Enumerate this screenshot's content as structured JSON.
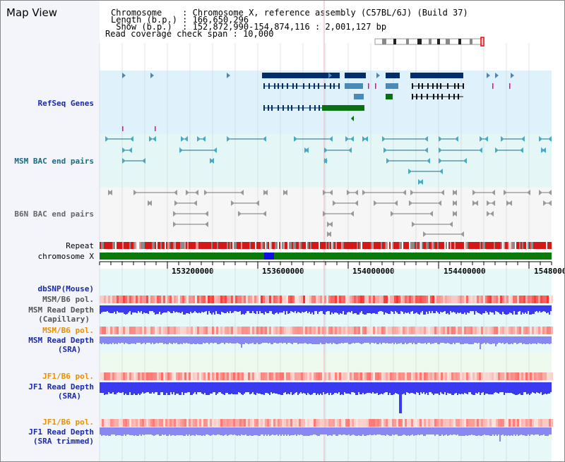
{
  "header": {
    "title": "Map View",
    "lines": [
      "Chromosome    : Chromosome X, reference assembly (C57BL/6J) (Build 37)",
      "Length (b.p.) : 166,650,296",
      " Show (b.p.)  : 152,872,990-154,874,116 : 2,001,127 bp",
      "Read coverage check span : 10,000"
    ]
  },
  "tracks": {
    "refseq": "RefSeq Genes",
    "msm_bac": "MSM BAC end pairs",
    "b6n_bac": "B6N BAC end pairs",
    "repeat": "Repeat",
    "chromosome": "chromosome X",
    "dbsnp": "dbSNP(Mouse)",
    "msm_pol": "MSM/B6 pol.",
    "msm_depth_cap_1": "MSM Read Depth",
    "msm_depth_cap_2": "(Capillary)",
    "msm_pol_sra": "MSM/B6 pol.",
    "msm_depth_sra_1": "MSM Read Depth",
    "msm_depth_sra_2": "(SRA)",
    "jf1_pol": "JF1/B6 pol.",
    "jf1_depth_1": "JF1 Read Depth",
    "jf1_depth_2": "(SRA)",
    "jf1_pol_trim": "JF1/B6 pol.",
    "jf1_trim_1": "JF1 Read Depth",
    "jf1_trim_2": "(SRA trimmed)"
  },
  "axis_ticks": [
    "153200000",
    "153600000",
    "154000000",
    "154400000",
    "1548000"
  ],
  "colors": {
    "refseq_bg": "#dff1fa",
    "msm_bg": "#e4f6f6",
    "b6n_bg": "#f6f6f6",
    "gene_navy": "#002e6b",
    "gene_steel": "#4a8ab8",
    "gene_green": "#087010",
    "bac_teal": "#1a6a80",
    "bac_gray": "#777777",
    "chromosome_green": "#0a7a0a",
    "chromosome_marker": "#1010e0",
    "label_blue": "#1a2aa8",
    "label_orange": "#e89000",
    "depth_blue": "#3a3af0",
    "depth_light": "#8888f0"
  }
}
